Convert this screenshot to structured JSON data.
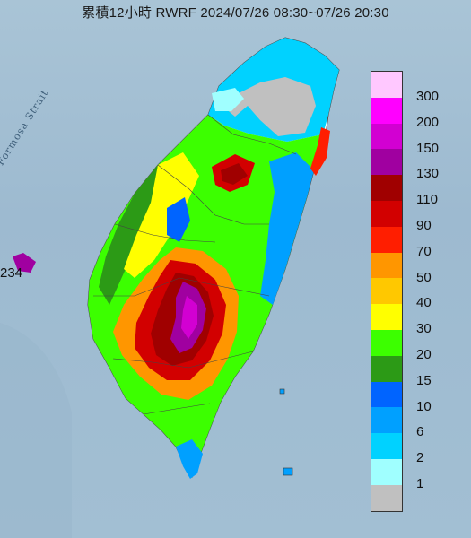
{
  "header": {
    "title": "累積12小時 RWRF 2024/07/26 08:30~07/26 20:30"
  },
  "map": {
    "sea_label": "Formosa Strait",
    "spot_value": "234",
    "sea_color": "#a2bfd3",
    "land_color": "#ffffff"
  },
  "legend": {
    "items": [
      {
        "label": "300",
        "color": "#ffc8ff"
      },
      {
        "label": "200",
        "color": "#ff00ff"
      },
      {
        "label": "150",
        "color": "#d200d2"
      },
      {
        "label": "130",
        "color": "#a000a0"
      },
      {
        "label": "110",
        "color": "#a00000"
      },
      {
        "label": "90",
        "color": "#d20000"
      },
      {
        "label": "70",
        "color": "#ff1e00"
      },
      {
        "label": "50",
        "color": "#ff9600"
      },
      {
        "label": "40",
        "color": "#ffc800"
      },
      {
        "label": "30",
        "color": "#ffff00"
      },
      {
        "label": "20",
        "color": "#3cff00"
      },
      {
        "label": "15",
        "color": "#2c9a16"
      },
      {
        "label": "10",
        "color": "#0064ff"
      },
      {
        "label": "6",
        "color": "#00a0ff"
      },
      {
        "label": "2",
        "color": "#00d2ff"
      },
      {
        "label": "1",
        "color": "#a0ffff"
      },
      {
        "label": "",
        "color": "#c0c0c0"
      }
    ]
  }
}
